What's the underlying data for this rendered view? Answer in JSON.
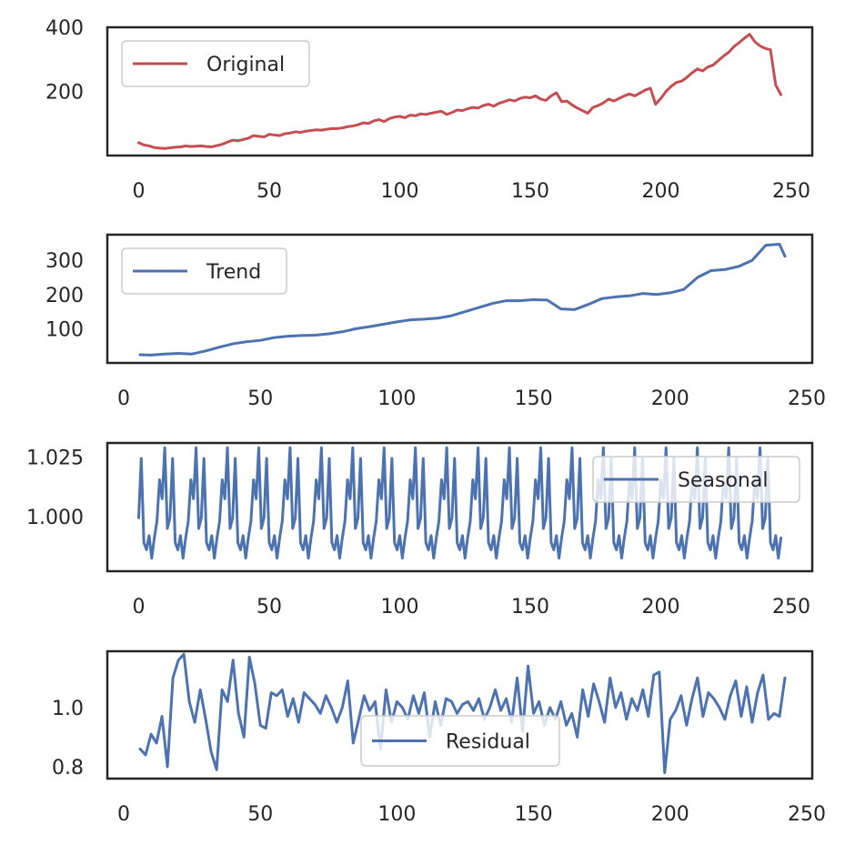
{
  "chart_data": [
    {
      "type": "line",
      "title": "",
      "xlabel": "",
      "ylabel": "",
      "xlim": [
        -12,
        258
      ],
      "ylim": [
        0,
        400
      ],
      "xticks": [
        0,
        50,
        100,
        150,
        200,
        250
      ],
      "yticks": [
        200,
        400
      ],
      "legend_position": "upper-left",
      "grid": false,
      "series": [
        {
          "name": "Original",
          "color": "#c44e52",
          "x": [
            0,
            2,
            4,
            6,
            8,
            10,
            12,
            14,
            16,
            18,
            20,
            22,
            24,
            26,
            28,
            30,
            32,
            34,
            36,
            38,
            40,
            42,
            44,
            46,
            48,
            50,
            52,
            54,
            56,
            58,
            60,
            62,
            64,
            66,
            68,
            70,
            72,
            74,
            76,
            78,
            80,
            82,
            84,
            86,
            88,
            90,
            92,
            94,
            96,
            98,
            100,
            102,
            104,
            106,
            108,
            110,
            112,
            114,
            116,
            118,
            120,
            122,
            124,
            126,
            128,
            130,
            132,
            134,
            136,
            138,
            140,
            142,
            144,
            146,
            148,
            150,
            152,
            154,
            156,
            158,
            160,
            162,
            164,
            166,
            168,
            170,
            172,
            174,
            176,
            178,
            180,
            182,
            184,
            186,
            188,
            190,
            192,
            194,
            196,
            198,
            200,
            202,
            204,
            206,
            208,
            210,
            212,
            214,
            216,
            218,
            220,
            222,
            224,
            226,
            228,
            230,
            232,
            234,
            236,
            238,
            240,
            242,
            244,
            246
          ],
          "values": [
            40,
            33,
            30,
            25,
            23,
            22,
            24,
            26,
            27,
            30,
            28,
            29,
            30,
            28,
            27,
            31,
            35,
            42,
            48,
            46,
            50,
            54,
            62,
            60,
            58,
            66,
            64,
            62,
            68,
            70,
            74,
            72,
            76,
            78,
            80,
            79,
            82,
            84,
            84,
            86,
            90,
            92,
            96,
            102,
            100,
            108,
            112,
            106,
            115,
            120,
            122,
            118,
            126,
            124,
            130,
            128,
            132,
            135,
            138,
            128,
            134,
            142,
            140,
            146,
            150,
            148,
            156,
            160,
            154,
            163,
            168,
            174,
            170,
            178,
            182,
            180,
            186,
            176,
            172,
            186,
            196,
            168,
            170,
            158,
            148,
            140,
            132,
            150,
            156,
            164,
            176,
            170,
            178,
            186,
            192,
            186,
            195,
            204,
            210,
            160,
            178,
            200,
            216,
            228,
            232,
            244,
            258,
            270,
            264,
            276,
            282,
            296,
            310,
            322,
            340,
            352,
            366,
            378,
            355,
            342,
            334,
            330,
            220,
            190
          ]
        }
      ]
    },
    {
      "type": "line",
      "title": "",
      "xlabel": "",
      "ylabel": "",
      "xlim": [
        -6,
        252
      ],
      "ylim": [
        0,
        375
      ],
      "xticks": [
        0,
        50,
        100,
        150,
        200,
        250
      ],
      "yticks": [
        100,
        200,
        300
      ],
      "legend_position": "upper-left",
      "grid": false,
      "series": [
        {
          "name": "Trend",
          "color": "#4c72b0",
          "x": [
            6,
            10,
            15,
            20,
            25,
            30,
            35,
            40,
            45,
            50,
            55,
            60,
            65,
            70,
            75,
            80,
            85,
            90,
            95,
            100,
            105,
            110,
            115,
            120,
            125,
            130,
            135,
            140,
            145,
            150,
            155,
            160,
            165,
            170,
            175,
            180,
            185,
            190,
            195,
            200,
            205,
            210,
            215,
            220,
            225,
            230,
            235,
            240,
            242
          ],
          "values": [
            24,
            23,
            26,
            28,
            26,
            35,
            46,
            56,
            62,
            66,
            74,
            78,
            80,
            81,
            85,
            91,
            100,
            106,
            113,
            120,
            126,
            128,
            131,
            138,
            150,
            162,
            174,
            182,
            182,
            185,
            184,
            158,
            156,
            171,
            188,
            193,
            196,
            203,
            200,
            205,
            215,
            250,
            270,
            273,
            282,
            300,
            344,
            347,
            312
          ]
        }
      ]
    },
    {
      "type": "line",
      "title": "",
      "xlabel": "",
      "ylabel": "",
      "xlim": [
        -12,
        258
      ],
      "ylim": [
        0.977,
        1.031
      ],
      "xticks": [
        0,
        50,
        100,
        150,
        200,
        250
      ],
      "yticks": [
        1.0,
        1.025
      ],
      "ytick_labels": [
        "1.000",
        "1.025"
      ],
      "legend_position": "upper-right",
      "grid": false,
      "period": 12,
      "x_start": 0,
      "x_end": 246,
      "series": [
        {
          "name": "Seasonal",
          "color": "#4c72b0",
          "pattern": [
            0.9995,
            1.0245,
            0.989,
            0.986,
            0.992,
            0.9825,
            0.991,
            0.998,
            1.0155,
            1.0075,
            1.029,
            0.995
          ]
        }
      ]
    },
    {
      "type": "line",
      "title": "",
      "xlabel": "",
      "ylabel": "",
      "xlim": [
        -6,
        252
      ],
      "ylim": [
        0.76,
        1.19
      ],
      "xticks": [
        0,
        50,
        100,
        150,
        200,
        250
      ],
      "yticks": [
        0.8,
        1.0
      ],
      "ytick_labels": [
        "0.8",
        "1.0"
      ],
      "legend_position": "lower-center",
      "grid": false,
      "series": [
        {
          "name": "Residual",
          "color": "#4c72b0",
          "x": [
            6,
            8,
            10,
            12,
            14,
            16,
            18,
            20,
            22,
            24,
            26,
            28,
            30,
            32,
            34,
            36,
            38,
            40,
            42,
            44,
            46,
            48,
            50,
            52,
            54,
            56,
            58,
            60,
            62,
            64,
            66,
            68,
            70,
            72,
            74,
            76,
            78,
            80,
            82,
            84,
            86,
            88,
            90,
            92,
            94,
            96,
            98,
            100,
            102,
            104,
            106,
            108,
            110,
            112,
            114,
            116,
            118,
            120,
            122,
            124,
            126,
            128,
            130,
            132,
            134,
            136,
            138,
            140,
            142,
            144,
            146,
            148,
            150,
            152,
            154,
            156,
            158,
            160,
            162,
            164,
            166,
            168,
            170,
            172,
            174,
            176,
            178,
            180,
            182,
            184,
            186,
            188,
            190,
            192,
            194,
            196,
            198,
            200,
            202,
            204,
            206,
            208,
            210,
            212,
            214,
            216,
            218,
            220,
            222,
            224,
            226,
            228,
            230,
            232,
            234,
            236,
            238,
            240,
            242
          ],
          "values": [
            0.86,
            0.84,
            0.91,
            0.88,
            0.97,
            0.8,
            1.1,
            1.16,
            1.18,
            1.02,
            0.95,
            1.06,
            0.96,
            0.85,
            0.79,
            1.06,
            1.02,
            1.16,
            0.98,
            0.9,
            1.17,
            1.08,
            0.94,
            0.93,
            1.05,
            1.04,
            1.06,
            0.97,
            1.03,
            0.95,
            1.05,
            1.03,
            1.01,
            0.98,
            1.04,
            1.0,
            0.95,
            1.0,
            1.09,
            0.88,
            0.96,
            1.04,
            0.99,
            1.02,
            0.86,
            1.06,
            0.95,
            1.02,
            1.0,
            0.96,
            1.04,
            0.98,
            1.05,
            0.9,
            1.02,
            0.94,
            1.03,
            1.02,
            0.98,
            1.01,
            1.02,
            0.99,
            1.03,
            0.96,
            1.0,
            1.06,
            0.99,
            1.03,
            0.95,
            1.1,
            0.92,
            1.14,
            0.98,
            1.02,
            0.94,
            1.0,
            0.96,
            1.02,
            0.94,
            0.98,
            0.9,
            1.06,
            0.97,
            1.08,
            1.02,
            0.95,
            1.1,
            1.0,
            1.05,
            0.96,
            1.03,
            0.99,
            1.06,
            0.97,
            1.11,
            1.12,
            0.78,
            0.96,
            0.99,
            1.04,
            0.94,
            1.03,
            1.1,
            0.97,
            1.05,
            1.03,
            1.0,
            0.96,
            1.04,
            1.09,
            0.97,
            1.07,
            0.95,
            1.05,
            1.11,
            0.96,
            0.98,
            0.97,
            1.1
          ]
        }
      ]
    }
  ]
}
